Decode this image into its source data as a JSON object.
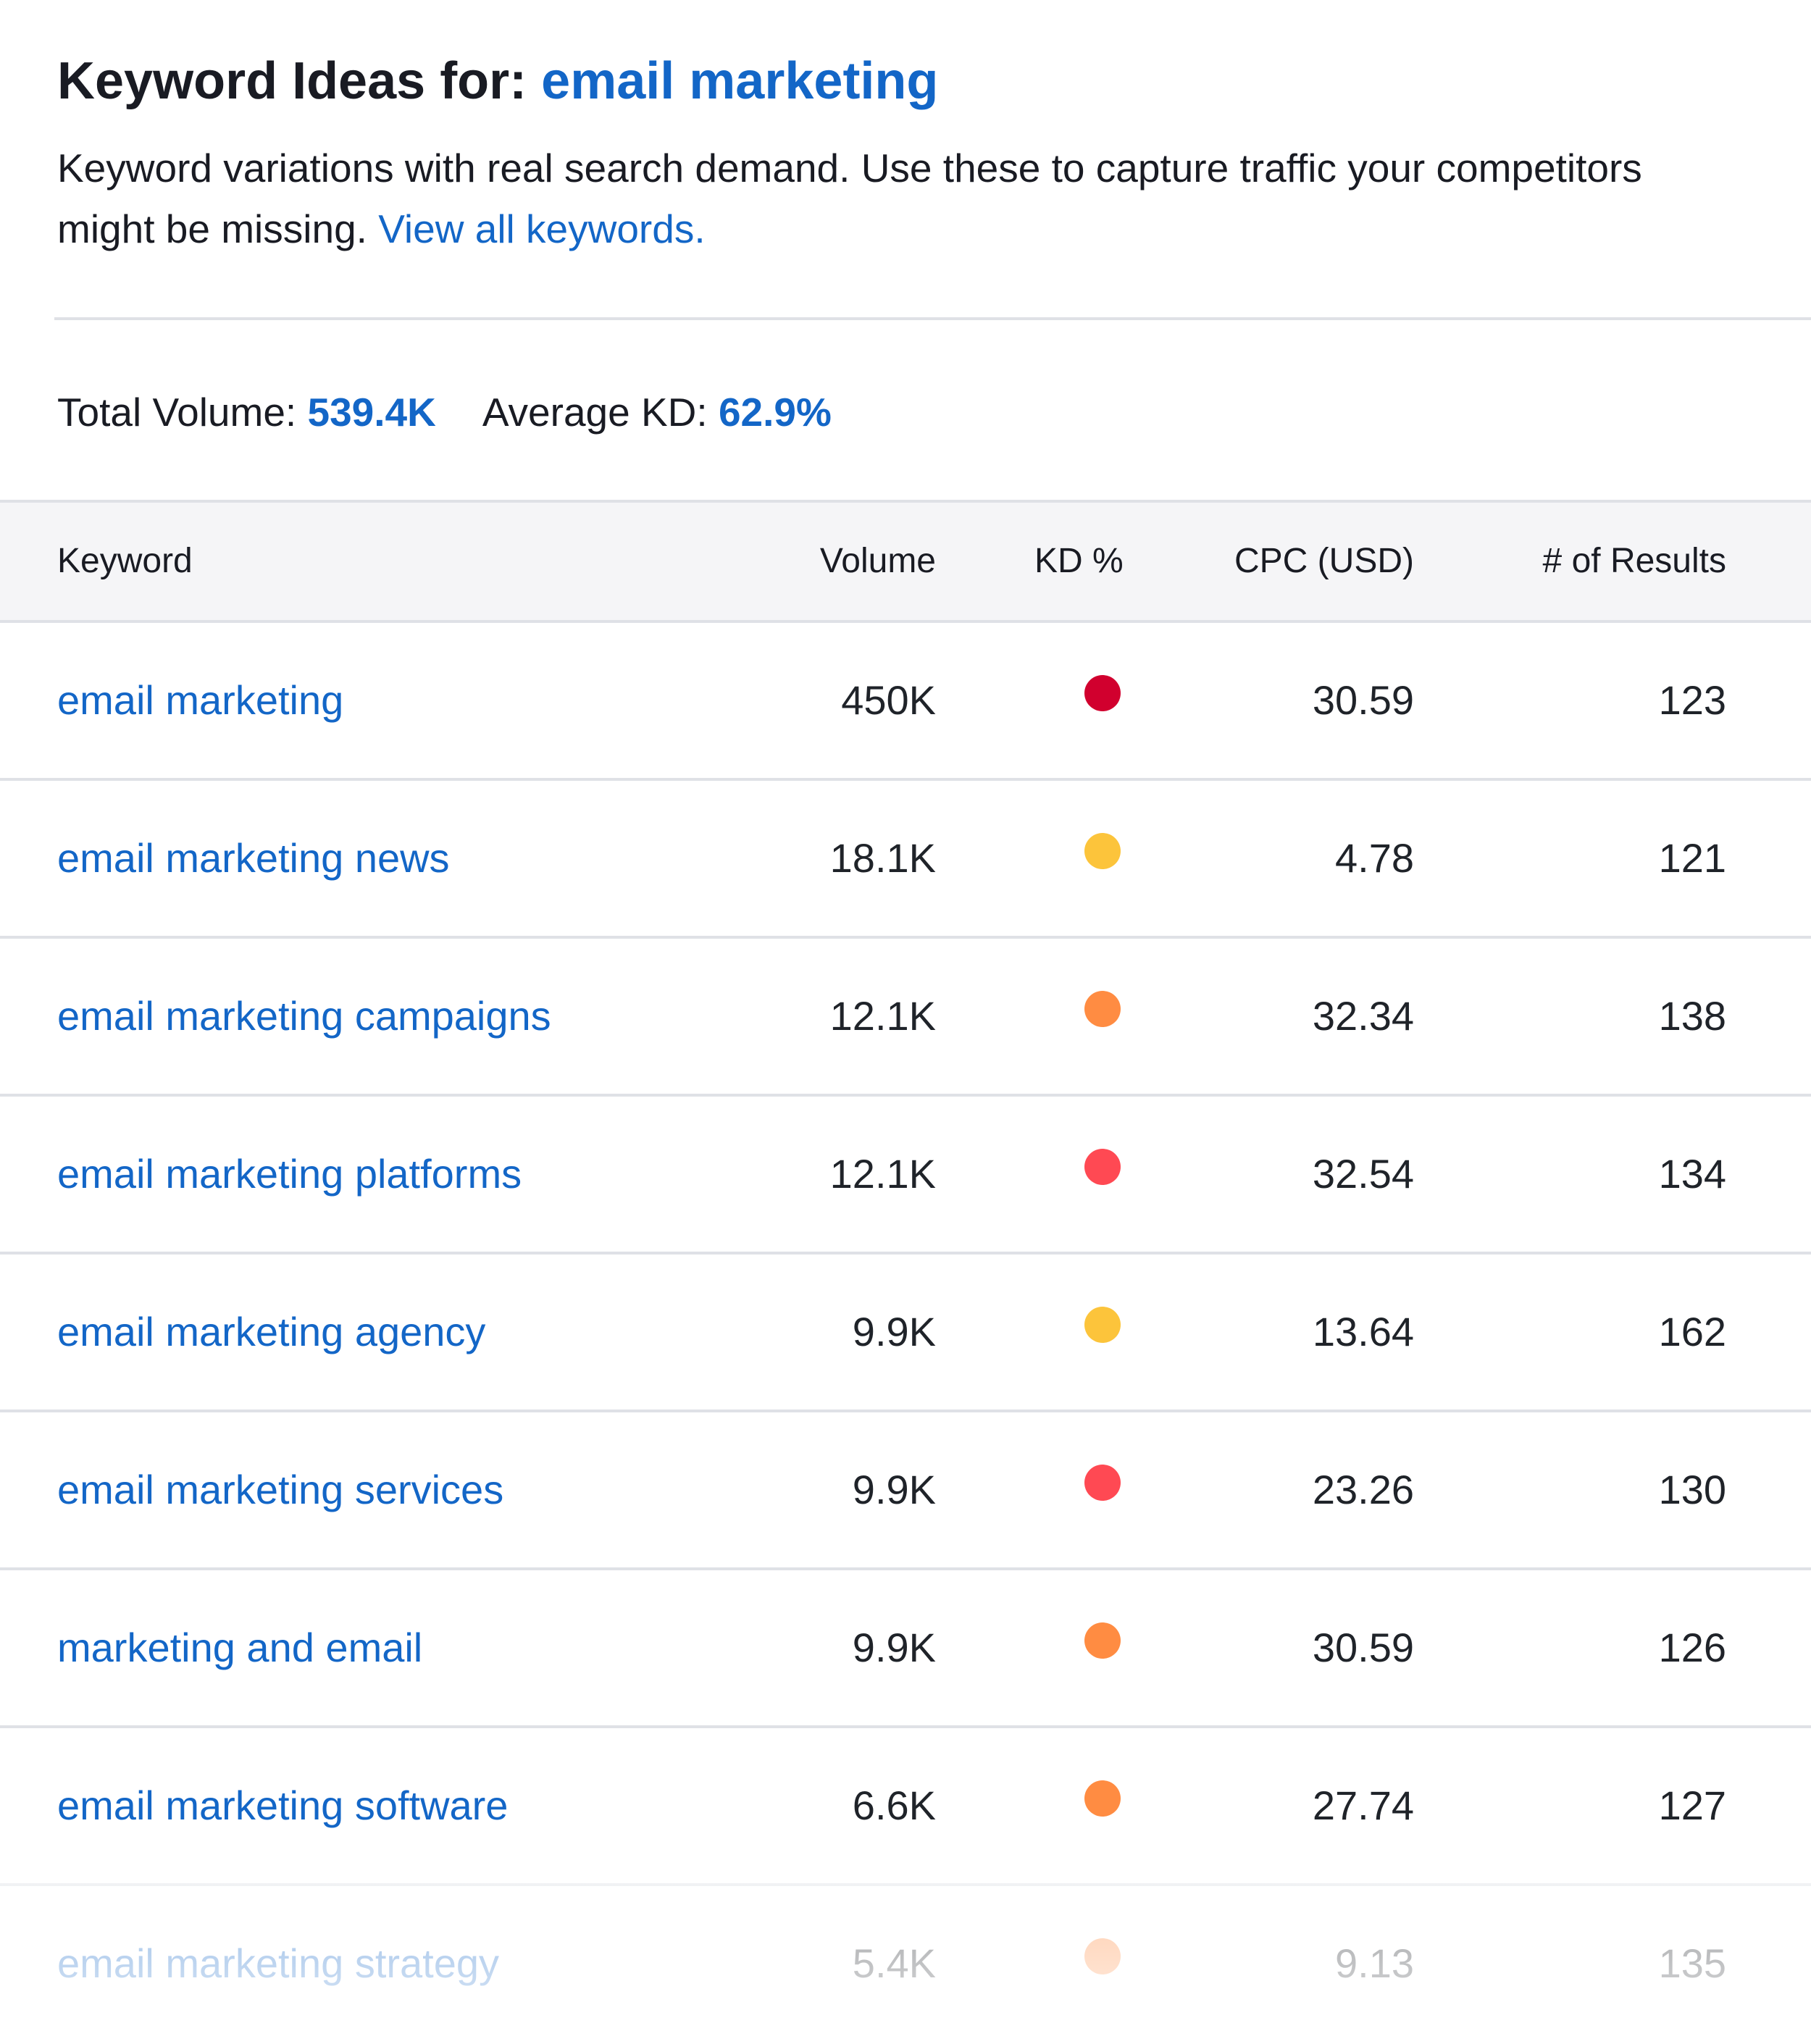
{
  "header": {
    "title_prefix": "Keyword Ideas for:",
    "title_query": "email marketing",
    "description": "Keyword variations with real search demand. Use these to capture traffic your competitors might be missing.",
    "view_all_link": "View all keywords."
  },
  "summary": {
    "total_volume_label": "Total Volume:",
    "total_volume_value": "539.4K",
    "avg_kd_label": "Average KD:",
    "avg_kd_value": "62.9%"
  },
  "table": {
    "columns": {
      "keyword": "Keyword",
      "volume": "Volume",
      "kd": "KD %",
      "cpc": "CPC (USD)",
      "results": "# of Results"
    },
    "rows": [
      {
        "keyword": "email marketing",
        "volume": "450K",
        "kd_color": "#d1002e",
        "cpc": "30.59",
        "results": "123"
      },
      {
        "keyword": "email marketing news",
        "volume": "18.1K",
        "kd_color": "#fcc43b",
        "cpc": "4.78",
        "results": "121"
      },
      {
        "keyword": "email marketing campaigns",
        "volume": "12.1K",
        "kd_color": "#ff8c42",
        "cpc": "32.34",
        "results": "138"
      },
      {
        "keyword": "email marketing platforms",
        "volume": "12.1K",
        "kd_color": "#ff4953",
        "cpc": "32.54",
        "results": "134"
      },
      {
        "keyword": "email marketing agency",
        "volume": "9.9K",
        "kd_color": "#fcc43b",
        "cpc": "13.64",
        "results": "162"
      },
      {
        "keyword": "email marketing services",
        "volume": "9.9K",
        "kd_color": "#ff4953",
        "cpc": "23.26",
        "results": "130"
      },
      {
        "keyword": "marketing and email",
        "volume": "9.9K",
        "kd_color": "#ff8c42",
        "cpc": "30.59",
        "results": "126"
      },
      {
        "keyword": "email marketing software",
        "volume": "6.6K",
        "kd_color": "#ff8c42",
        "cpc": "27.74",
        "results": "127"
      },
      {
        "keyword": "email marketing strategy",
        "volume": "5.4K",
        "kd_color": "#ff8c42",
        "cpc": "9.13",
        "results": "135"
      }
    ]
  }
}
